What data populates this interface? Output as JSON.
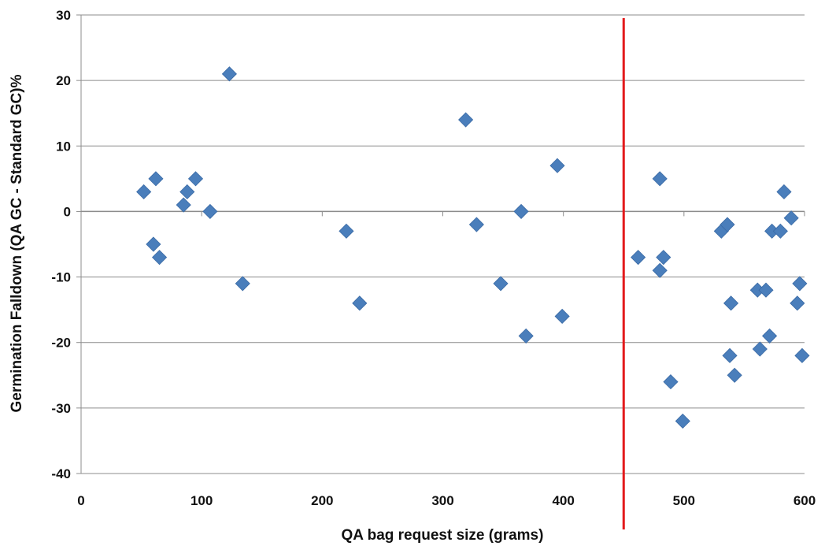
{
  "chart_data": {
    "type": "scatter",
    "title": "",
    "xlabel": "QA bag request size (grams)",
    "ylabel": "Germination Falldown (QA GC - Standard GC)%",
    "xlim": [
      0,
      600
    ],
    "ylim": [
      -40,
      30
    ],
    "xticks": [
      "0",
      "100",
      "200",
      "300",
      "400",
      "500",
      "600"
    ],
    "yticks": [
      "30",
      "20",
      "10",
      "0",
      "-10",
      "-20",
      "-30",
      "-40"
    ],
    "grid": "horizontal",
    "legend": "none",
    "marker": "diamond",
    "marker_color": "#4a7ebb",
    "reference_line": {
      "x": 450,
      "color": "#e31a1c"
    },
    "series": [
      {
        "points": [
          [
            52,
            3
          ],
          [
            62,
            5
          ],
          [
            60,
            -5
          ],
          [
            65,
            -7
          ],
          [
            85,
            1
          ],
          [
            88,
            3
          ],
          [
            95,
            5
          ],
          [
            107,
            0
          ],
          [
            123,
            21
          ],
          [
            134,
            -11
          ],
          [
            220,
            -3
          ],
          [
            231,
            -14
          ],
          [
            319,
            14
          ],
          [
            328,
            -2
          ],
          [
            348,
            -11
          ],
          [
            365,
            0
          ],
          [
            369,
            -19
          ],
          [
            395,
            7
          ],
          [
            399,
            -16
          ],
          [
            462,
            -7
          ],
          [
            480,
            5
          ],
          [
            480,
            -9
          ],
          [
            483,
            -7
          ],
          [
            489,
            -26
          ],
          [
            499,
            -32
          ],
          [
            531,
            -3
          ],
          [
            536,
            -2
          ],
          [
            539,
            -14
          ],
          [
            538,
            -22
          ],
          [
            542,
            -25
          ],
          [
            561,
            -12
          ],
          [
            563,
            -21
          ],
          [
            568,
            -12
          ],
          [
            571,
            -19
          ],
          [
            573,
            -3
          ],
          [
            580,
            -3
          ],
          [
            583,
            3
          ],
          [
            589,
            -1
          ],
          [
            594,
            -14
          ],
          [
            596,
            -11
          ],
          [
            598,
            -22
          ]
        ]
      }
    ]
  }
}
